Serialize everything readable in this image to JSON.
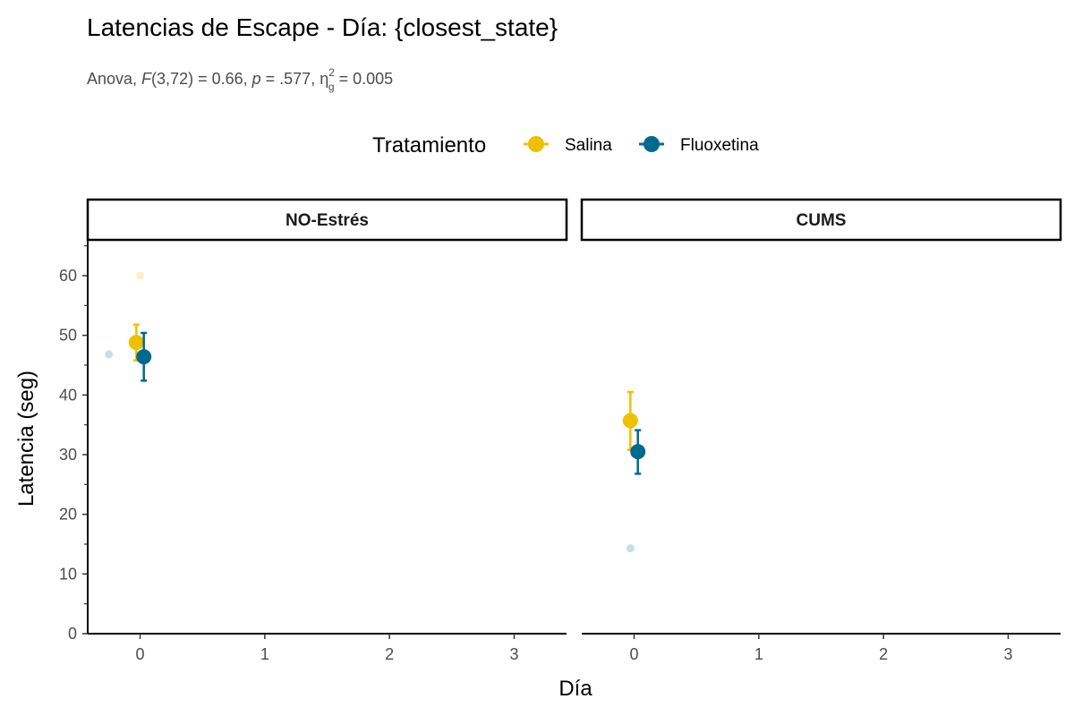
{
  "chart_data": {
    "type": "scatter",
    "title": "Latencias de Escape - Día: {closest_state}",
    "subtitle": {
      "prefix": "Anova, ",
      "stat": "F",
      "df": "(3,72) = 0.66, ",
      "p_label": "p",
      "p_value": " = .577, ",
      "effect": "η",
      "effect_sup": "2",
      "effect_sub": "g",
      "effect_value": " = 0.005"
    },
    "xlabel": "Día",
    "ylabel": "Latencia (seg)",
    "x_ticks": [
      "0",
      "1",
      "2",
      "3"
    ],
    "y_ticks": [
      "0",
      "10",
      "20",
      "30",
      "40",
      "50",
      "60"
    ],
    "xlim": [
      -0.42,
      3.42
    ],
    "ylim": [
      0,
      66
    ],
    "grid": false,
    "legend": {
      "title": "Tratamiento",
      "position": "top",
      "entries": [
        {
          "name": "Salina",
          "color": "#EFC000"
        },
        {
          "name": "Fluoxetina",
          "color": "#006A8E"
        }
      ]
    },
    "panels": [
      {
        "label": "NO-Estrés",
        "series": [
          {
            "name": "Salina",
            "color": "#EFC000",
            "mean": {
              "x": 0,
              "y": 48.8,
              "lower": 45.8,
              "upper": 51.8
            },
            "points": [
              {
                "x": 0,
                "y": 60
              }
            ]
          },
          {
            "name": "Fluoxetina",
            "color": "#006A8E",
            "mean": {
              "x": 0,
              "y": 46.4,
              "lower": 42.4,
              "upper": 50.4
            },
            "points": [
              {
                "x": -0.25,
                "y": 46.8
              }
            ]
          }
        ]
      },
      {
        "label": "CUMS",
        "series": [
          {
            "name": "Salina",
            "color": "#EFC000",
            "mean": {
              "x": 0,
              "y": 35.7,
              "lower": 30.8,
              "upper": 40.5
            },
            "points": []
          },
          {
            "name": "Fluoxetina",
            "color": "#006A8E",
            "mean": {
              "x": 0,
              "y": 30.5,
              "lower": 26.8,
              "upper": 34.1
            },
            "points": [
              {
                "x": -0.03,
                "y": 14.3
              }
            ]
          }
        ]
      }
    ]
  }
}
